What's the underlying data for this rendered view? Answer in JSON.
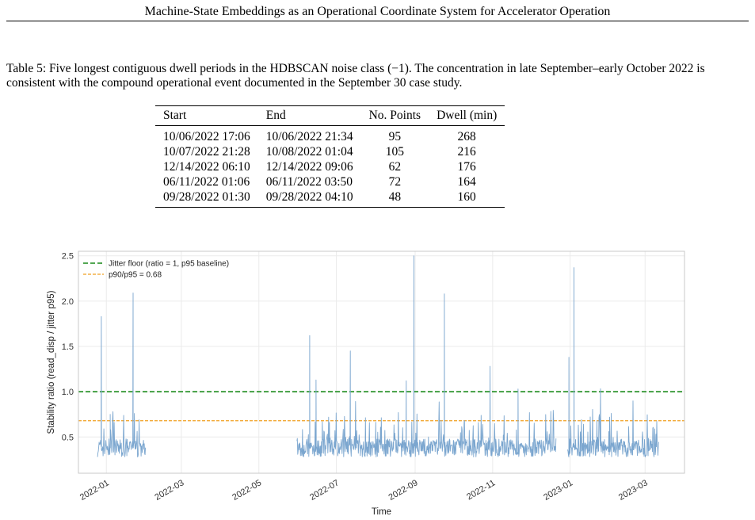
{
  "header": {
    "running_title": "Machine-State Embeddings as an Operational Coordinate System for Accelerator Operation"
  },
  "table5": {
    "caption": "Table 5: Five longest contiguous dwell periods in the HDBSCAN noise class (−1). The concentration in late September–early October 2022 is consistent with the compound operational event documented in the September 30 case study.",
    "columns": [
      "Start",
      "End",
      "No. Points",
      "Dwell (min)"
    ],
    "rows": [
      [
        "10/06/2022 17:06",
        "10/06/2022 21:34",
        "95",
        "268"
      ],
      [
        "10/07/2022 21:28",
        "10/08/2022 01:04",
        "105",
        "216"
      ],
      [
        "12/14/2022 06:10",
        "12/14/2022 09:06",
        "62",
        "176"
      ],
      [
        "06/11/2022 01:06",
        "06/11/2022 03:50",
        "72",
        "164"
      ],
      [
        "09/28/2022 01:30",
        "09/28/2022 04:10",
        "48",
        "160"
      ]
    ]
  },
  "chart_data": {
    "type": "line",
    "title": "",
    "xlabel": "Time",
    "ylabel": "Stability ratio  (read_disp / jitter p95)",
    "ylim": [
      0.1,
      2.55
    ],
    "yticks": [
      "0.5",
      "1.0",
      "1.5",
      "2.0",
      "2.5"
    ],
    "xticks": [
      "2022-01",
      "2022-03",
      "2022-05",
      "2022-07",
      "2022-09",
      "2022-11",
      "2023-01",
      "2023-03"
    ],
    "grid": true,
    "legend_position": "top-left",
    "series": [
      {
        "name": "",
        "color": "#7ba6cf",
        "segments": [
          {
            "start": "2021-12-25",
            "end": "2022-02-01",
            "baseline": 0.38,
            "noise": 0.1
          },
          {
            "start": "2022-05-31",
            "end": "2022-12-21",
            "baseline": 0.38,
            "noise": 0.1
          },
          {
            "start": "2022-12-30",
            "end": "2023-03-12",
            "baseline": 0.38,
            "noise": 0.1
          }
        ],
        "peaks": [
          {
            "date": "2021-12-28",
            "value": 1.83
          },
          {
            "date": "2022-01-04",
            "value": 0.75
          },
          {
            "date": "2022-01-22",
            "value": 2.09
          },
          {
            "date": "2022-06-10",
            "value": 1.62
          },
          {
            "date": "2022-06-15",
            "value": 1.13
          },
          {
            "date": "2022-07-12",
            "value": 1.45
          },
          {
            "date": "2022-08-25",
            "value": 1.12
          },
          {
            "date": "2022-08-31",
            "value": 2.5
          },
          {
            "date": "2022-09-24",
            "value": 2.08
          },
          {
            "date": "2022-10-30",
            "value": 1.28
          },
          {
            "date": "2022-11-21",
            "value": 1.03
          },
          {
            "date": "2022-12-31",
            "value": 1.38
          },
          {
            "date": "2023-01-04",
            "value": 2.37
          }
        ]
      }
    ],
    "reference_lines": [
      {
        "name": "Jitter floor (ratio = 1, p95 baseline)",
        "value": 1.0,
        "color": "#1a8a1a",
        "style": "dashed"
      },
      {
        "name": "p90/p95 = 0.68",
        "value": 0.68,
        "color": "#f0a020",
        "style": "dashed"
      }
    ]
  }
}
